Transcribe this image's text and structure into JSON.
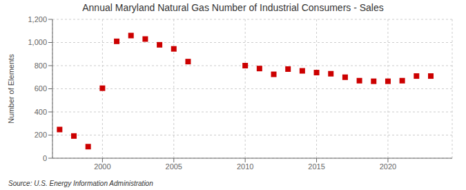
{
  "chart_data": {
    "type": "scatter",
    "title": "Annual Maryland Natural Gas Number of Industrial Consumers - Sales",
    "ylabel": "Number of Elements",
    "annotation": "Source: U.S. Energy Information Administration",
    "x": [
      1997,
      1998,
      1999,
      2000,
      2001,
      2002,
      2003,
      2004,
      2005,
      2006,
      2010,
      2011,
      2012,
      2013,
      2014,
      2015,
      2016,
      2017,
      2018,
      2019,
      2020,
      2021,
      2022,
      2023
    ],
    "values": [
      248,
      192,
      100,
      605,
      1010,
      1060,
      1030,
      980,
      945,
      835,
      800,
      775,
      725,
      770,
      755,
      740,
      730,
      700,
      670,
      665,
      665,
      670,
      710,
      710
    ],
    "color": "#cc0000",
    "marker": "square",
    "xlim": [
      1996.5,
      2024.5
    ],
    "xticks": [
      2000,
      2005,
      2010,
      2015,
      2020
    ],
    "ylim": [
      0,
      1200
    ],
    "yticks": [
      0,
      200,
      400,
      600,
      800,
      {
        "value": 1000,
        "label": "1,000"
      },
      {
        "value": 1200,
        "label": "1,200"
      }
    ],
    "grid": true
  }
}
